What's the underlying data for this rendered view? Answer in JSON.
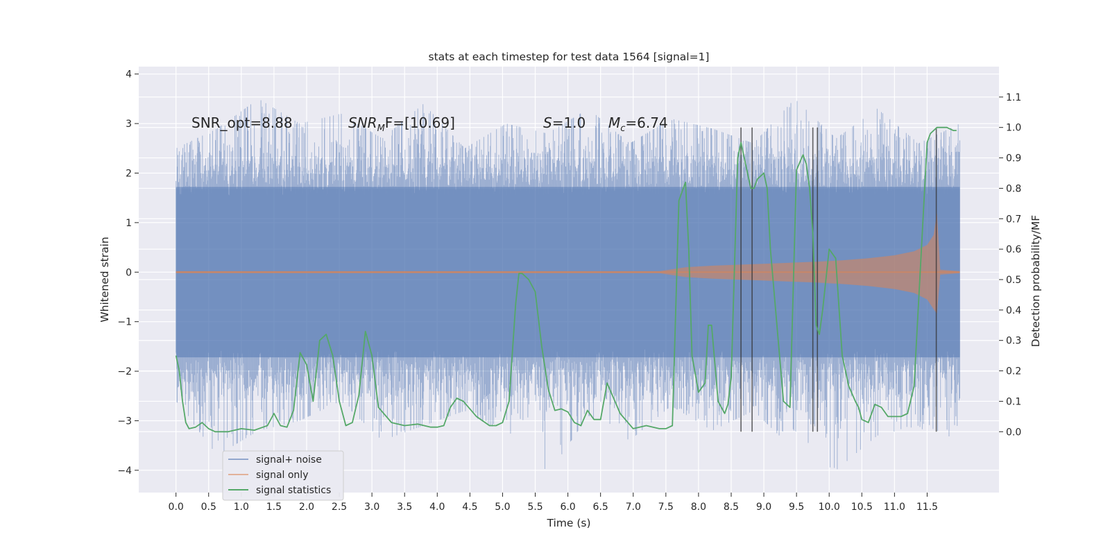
{
  "chart_data": {
    "type": "line",
    "title": "stats at each timestep for test data 1564 [signal=1]",
    "xlabel": "Time (s)",
    "ylabel": "Whitened strain",
    "ylabel_right": "Detection probability/MF",
    "xlim": [
      -0.57,
      12.6
    ],
    "ylim": [
      -4.45,
      4.15
    ],
    "ylim_right": [
      -0.2,
      1.2
    ],
    "xticks": [
      0.0,
      0.5,
      1.0,
      1.5,
      2.0,
      2.5,
      3.0,
      3.5,
      4.0,
      4.5,
      5.0,
      5.5,
      6.0,
      6.5,
      7.0,
      7.5,
      8.0,
      8.5,
      9.0,
      9.5,
      10.0,
      10.5,
      11.0,
      11.5
    ],
    "yticks": [
      -4,
      -3,
      -2,
      -1,
      0,
      1,
      2,
      3,
      4
    ],
    "yticks_right": [
      0.0,
      0.1,
      0.2,
      0.3,
      0.4,
      0.5,
      0.6,
      0.7,
      0.8,
      0.9,
      1.0,
      1.1
    ],
    "grid": true,
    "legend_position": "lower-left",
    "colors": {
      "noise": "#4c72b0",
      "signal": "#dd8452",
      "stat": "#55a868",
      "vline": "#333333",
      "background": "#eaeaf2"
    },
    "annotations": {
      "snr_opt": "SNR_opt=8.88",
      "snr_mf_main": "SNR",
      "snr_mf_sub": "M",
      "snr_mf_rest": "F=[10.69]",
      "s_label": "S",
      "s_value": "=1.0",
      "mc_label": "M",
      "mc_sub": "c",
      "mc_value": "=6.74"
    },
    "series": [
      {
        "name": "signal+ noise",
        "kind": "noise",
        "x_range": [
          0.0,
          12.0
        ],
        "envelope_positive": [
          2.5,
          2.9,
          3.5,
          3.0,
          3.2,
          2.7,
          3.4,
          2.5,
          3.0,
          2.8,
          3.3,
          2.6,
          3.1,
          2.9,
          2.6,
          3.5,
          2.7,
          3.3,
          2.6,
          3.0
        ],
        "envelope_negative": [
          -2.6,
          -3.7,
          -3.2,
          -3.0,
          -2.6,
          -3.4,
          -3.1,
          -2.8,
          -3.3,
          -4.1,
          -2.9,
          -3.4,
          -2.7,
          -3.2,
          -2.8,
          -3.6,
          -4.0,
          -3.3,
          -3.1,
          -3.9
        ]
      },
      {
        "name": "signal only",
        "kind": "chirp",
        "x": [
          0,
          7.4,
          7.8,
          8.2,
          8.6,
          9.0,
          9.4,
          9.8,
          10.2,
          10.6,
          11.0,
          11.3,
          11.5,
          11.6,
          11.65,
          11.7,
          12.0
        ],
        "amplitude": [
          0.02,
          0.02,
          0.1,
          0.13,
          0.15,
          0.17,
          0.19,
          0.21,
          0.24,
          0.28,
          0.34,
          0.42,
          0.55,
          0.75,
          1.2,
          0.05,
          0.02
        ]
      },
      {
        "name": "signal statistics",
        "kind": "line",
        "axis": "right",
        "x": [
          0.0,
          0.05,
          0.1,
          0.15,
          0.2,
          0.3,
          0.4,
          0.5,
          0.6,
          0.8,
          1.0,
          1.2,
          1.4,
          1.5,
          1.6,
          1.7,
          1.8,
          1.9,
          2.0,
          2.1,
          2.2,
          2.3,
          2.4,
          2.5,
          2.6,
          2.7,
          2.8,
          2.9,
          3.0,
          3.1,
          3.3,
          3.5,
          3.7,
          3.9,
          4.0,
          4.1,
          4.2,
          4.3,
          4.4,
          4.6,
          4.8,
          4.9,
          5.0,
          5.1,
          5.2,
          5.25,
          5.3,
          5.4,
          5.5,
          5.6,
          5.7,
          5.8,
          5.9,
          6.0,
          6.1,
          6.2,
          6.3,
          6.4,
          6.5,
          6.6,
          6.8,
          7.0,
          7.2,
          7.4,
          7.5,
          7.6,
          7.7,
          7.8,
          7.85,
          7.9,
          8.0,
          8.1,
          8.15,
          8.2,
          8.3,
          8.4,
          8.45,
          8.5,
          8.6,
          8.65,
          8.7,
          8.75,
          8.8,
          8.85,
          8.9,
          9.0,
          9.05,
          9.1,
          9.2,
          9.3,
          9.4,
          9.5,
          9.6,
          9.65,
          9.7,
          9.75,
          9.8,
          9.85,
          9.9,
          10.0,
          10.1,
          10.2,
          10.3,
          10.4,
          10.45,
          10.5,
          10.6,
          10.7,
          10.8,
          10.9,
          11.0,
          11.1,
          11.2,
          11.3,
          11.4,
          11.5,
          11.55,
          11.6,
          11.65,
          11.7,
          11.8,
          11.9,
          11.95
        ],
        "values": [
          0.25,
          0.2,
          0.1,
          0.03,
          0.01,
          0.015,
          0.03,
          0.01,
          0.0,
          0.0,
          0.01,
          0.005,
          0.02,
          0.06,
          0.02,
          0.015,
          0.07,
          0.26,
          0.22,
          0.1,
          0.3,
          0.32,
          0.25,
          0.1,
          0.02,
          0.03,
          0.12,
          0.33,
          0.25,
          0.08,
          0.03,
          0.02,
          0.025,
          0.015,
          0.015,
          0.02,
          0.08,
          0.11,
          0.1,
          0.05,
          0.02,
          0.02,
          0.03,
          0.1,
          0.42,
          0.52,
          0.52,
          0.5,
          0.46,
          0.28,
          0.14,
          0.07,
          0.075,
          0.065,
          0.03,
          0.02,
          0.07,
          0.04,
          0.04,
          0.16,
          0.06,
          0.01,
          0.02,
          0.01,
          0.01,
          0.02,
          0.76,
          0.82,
          0.6,
          0.25,
          0.13,
          0.16,
          0.35,
          0.35,
          0.1,
          0.06,
          0.09,
          0.18,
          0.9,
          0.95,
          0.9,
          0.85,
          0.8,
          0.8,
          0.83,
          0.85,
          0.8,
          0.6,
          0.35,
          0.1,
          0.08,
          0.86,
          0.91,
          0.88,
          0.8,
          0.65,
          0.35,
          0.32,
          0.4,
          0.6,
          0.57,
          0.25,
          0.15,
          0.1,
          0.08,
          0.04,
          0.03,
          0.09,
          0.08,
          0.05,
          0.05,
          0.05,
          0.06,
          0.15,
          0.55,
          0.95,
          0.98,
          0.99,
          1.0,
          1.0,
          1.0,
          0.99,
          0.99
        ]
      }
    ],
    "vertical_lines": [
      8.65,
      8.82,
      9.75,
      9.82,
      11.64
    ],
    "vline_range_right": [
      0.0,
      1.0
    ]
  }
}
